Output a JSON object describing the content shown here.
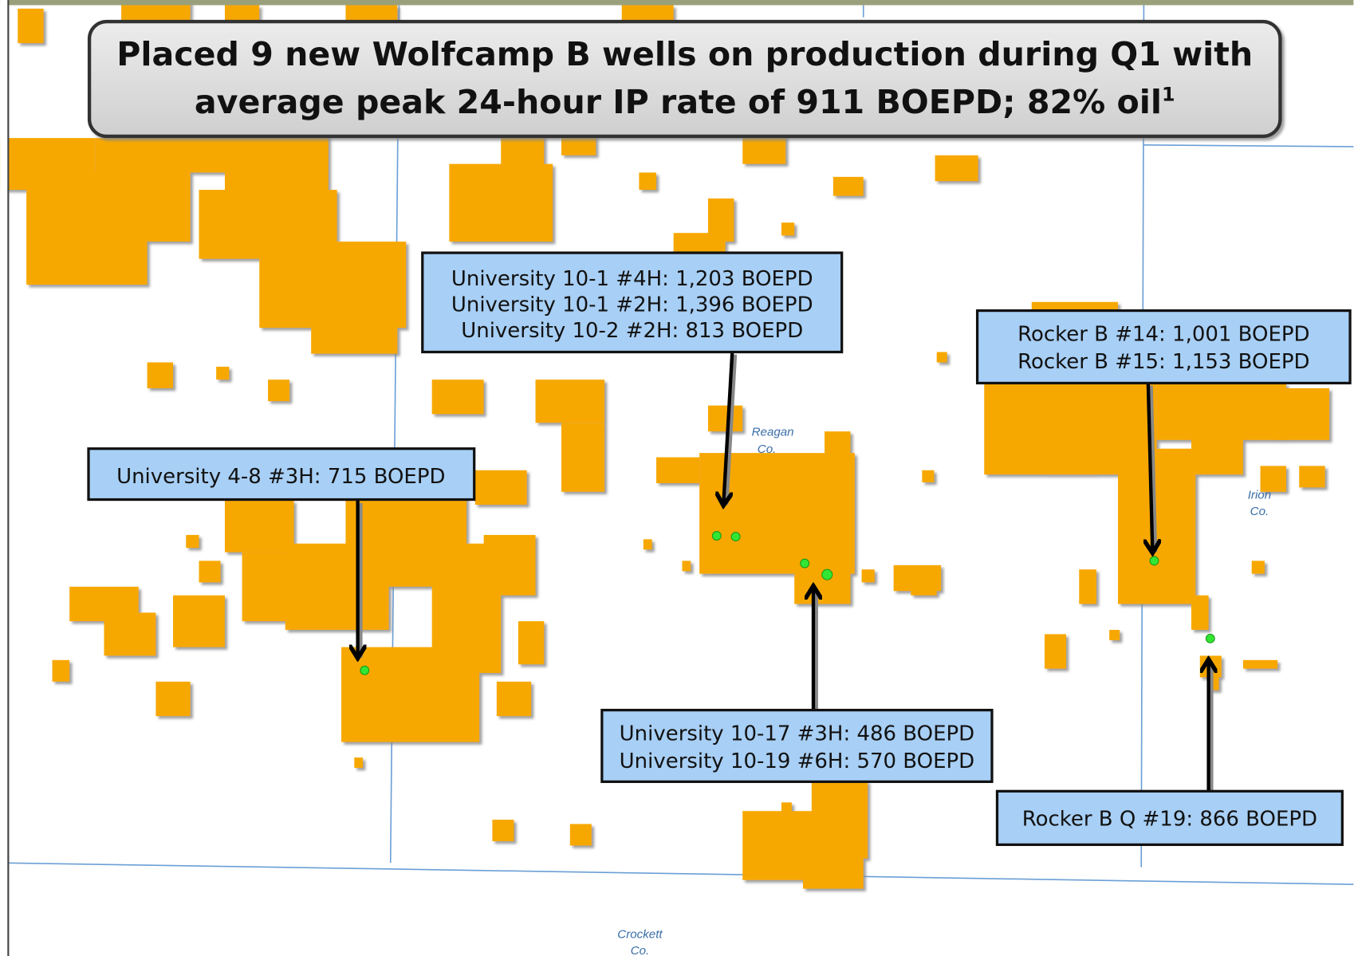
{
  "header": {
    "title_lines": [
      "Placed 9 new Wolfcamp B wells on production during Q1 with",
      "average peak 24-hour IP rate of 911 BOEPD; 82% oil"
    ],
    "footnote": "1"
  },
  "callouts": [
    {
      "lines": [
        "University 10-1 #4H: 1,203 BOEPD",
        "University 10-1 #2H: 1,396 BOEPD",
        "University 10-2 #2H:  813 BOEPD"
      ]
    },
    {
      "lines": [
        "Rocker B #14: 1,001 BOEPD",
        "Rocker B #15: 1,153 BOEPD"
      ]
    },
    {
      "lines": [
        "University 4-8 #3H: 715 BOEPD"
      ]
    },
    {
      "lines": [
        "University 10-17 #3H: 486 BOEPD",
        "University 10-19 #6H: 570 BOEPD"
      ]
    },
    {
      "lines": [
        "Rocker B Q #19: 866 BOEPD"
      ]
    }
  ],
  "county_labels": [
    {
      "lines": [
        "Reagan",
        "Co."
      ]
    },
    {
      "lines": [
        "Irion",
        "Co."
      ]
    },
    {
      "lines": [
        "Crockett",
        "Co."
      ]
    }
  ]
}
